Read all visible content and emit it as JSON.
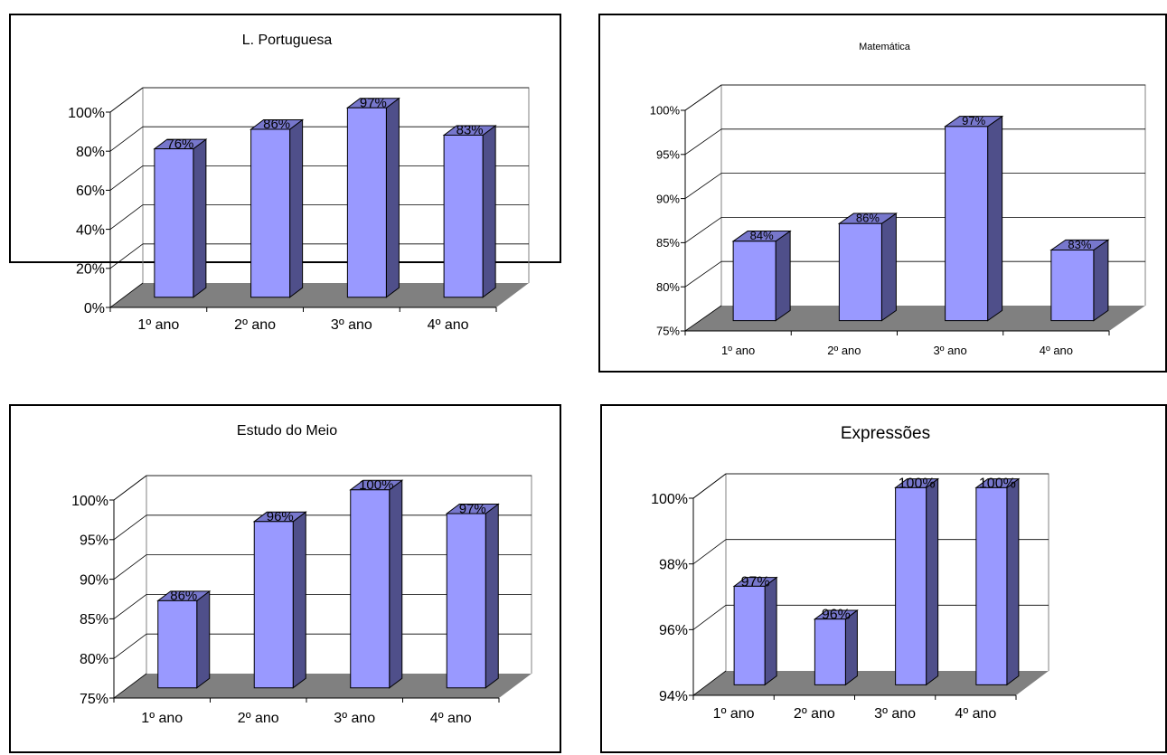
{
  "chart_data": [
    {
      "type": "bar",
      "title": "L. Portuguesa",
      "categories": [
        "1º ano",
        "2º ano",
        "3º ano",
        "4º ano"
      ],
      "values": [
        0.76,
        0.86,
        0.97,
        0.83
      ],
      "data_labels": [
        "76%",
        "86%",
        "97%",
        "83%"
      ],
      "ylim": [
        0,
        1.0
      ],
      "yticks": [
        0,
        0.2,
        0.4,
        0.6,
        0.8,
        1.0
      ],
      "ytick_labels": [
        "0%",
        "20%",
        "40%",
        "60%",
        "80%",
        "100%"
      ],
      "grid": true,
      "bar_style": "3d"
    },
    {
      "type": "bar",
      "title": "Matemática",
      "categories": [
        "1º ano",
        "2º ano",
        "3º ano",
        "4º ano"
      ],
      "values": [
        0.84,
        0.86,
        0.97,
        0.83
      ],
      "data_labels": [
        "84%",
        "86%",
        "97%",
        "83%"
      ],
      "ylim": [
        0.75,
        1.0
      ],
      "yticks": [
        0.75,
        0.8,
        0.85,
        0.9,
        0.95,
        1.0
      ],
      "ytick_labels": [
        "75%",
        "80%",
        "85%",
        "90%",
        "95%",
        "100%"
      ],
      "grid": true,
      "bar_style": "3d"
    },
    {
      "type": "bar",
      "title": "Estudo do Meio",
      "categories": [
        "1º ano",
        "2º ano",
        "3º ano",
        "4º ano"
      ],
      "values": [
        0.86,
        0.96,
        1.0,
        0.97
      ],
      "data_labels": [
        "86%",
        "96%",
        "100%",
        "97%"
      ],
      "ylim": [
        0.75,
        1.0
      ],
      "yticks": [
        0.75,
        0.8,
        0.85,
        0.9,
        0.95,
        1.0
      ],
      "ytick_labels": [
        "75%",
        "80%",
        "85%",
        "90%",
        "95%",
        "100%"
      ],
      "grid": true,
      "bar_style": "3d"
    },
    {
      "type": "bar",
      "title": "Expressões",
      "categories": [
        "1º ano",
        "2º ano",
        "3º ano",
        "4º ano"
      ],
      "values": [
        0.97,
        0.96,
        1.0,
        1.0
      ],
      "data_labels": [
        "97%",
        "96%",
        "100%",
        "100%"
      ],
      "ylim": [
        0.94,
        1.0
      ],
      "yticks": [
        0.94,
        0.96,
        0.98,
        1.0
      ],
      "ytick_labels": [
        "94%",
        "96%",
        "98%",
        "100%"
      ],
      "grid": true,
      "bar_style": "3d"
    }
  ],
  "colors": {
    "bar_front": "#9999ff",
    "bar_side": "#4f4f8a",
    "bar_top": "#7777cc",
    "floor": "#808080",
    "grid": "#000000",
    "wall_edge": "#808080"
  }
}
